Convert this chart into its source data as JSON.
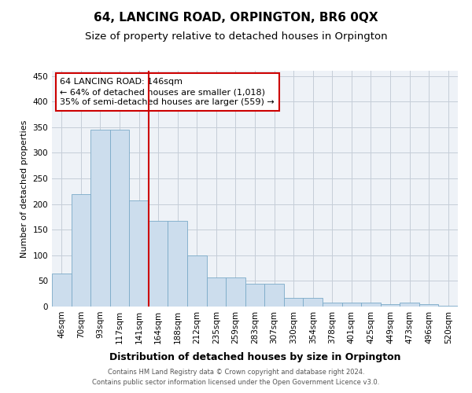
{
  "title": "64, LANCING ROAD, ORPINGTON, BR6 0QX",
  "subtitle": "Size of property relative to detached houses in Orpington",
  "xlabel": "Distribution of detached houses by size in Orpington",
  "ylabel": "Number of detached properties",
  "categories": [
    "46sqm",
    "70sqm",
    "93sqm",
    "117sqm",
    "141sqm",
    "164sqm",
    "188sqm",
    "212sqm",
    "235sqm",
    "259sqm",
    "283sqm",
    "307sqm",
    "330sqm",
    "354sqm",
    "378sqm",
    "401sqm",
    "425sqm",
    "449sqm",
    "473sqm",
    "496sqm",
    "520sqm"
  ],
  "values": [
    65,
    220,
    345,
    345,
    207,
    167,
    167,
    99,
    57,
    57,
    44,
    44,
    17,
    17,
    8,
    8,
    8,
    4,
    8,
    4,
    2
  ],
  "bar_color": "#ccdded",
  "bar_edge_color": "#7aaac8",
  "highlight_index": 4,
  "annotation_text": "64 LANCING ROAD: 146sqm\n← 64% of detached houses are smaller (1,018)\n35% of semi-detached houses are larger (559) →",
  "annotation_box_color": "white",
  "annotation_box_edge": "#cc0000",
  "ylim": [
    0,
    460
  ],
  "yticks": [
    0,
    50,
    100,
    150,
    200,
    250,
    300,
    350,
    400,
    450
  ],
  "footer_line1": "Contains HM Land Registry data © Crown copyright and database right 2024.",
  "footer_line2": "Contains public sector information licensed under the Open Government Licence v3.0.",
  "background_color": "#eef2f7",
  "grid_color": "#c5cdd8",
  "title_fontsize": 11,
  "subtitle_fontsize": 9.5,
  "xlabel_fontsize": 9,
  "ylabel_fontsize": 8,
  "tick_fontsize": 7.5,
  "annot_fontsize": 8,
  "footer_fontsize": 6
}
